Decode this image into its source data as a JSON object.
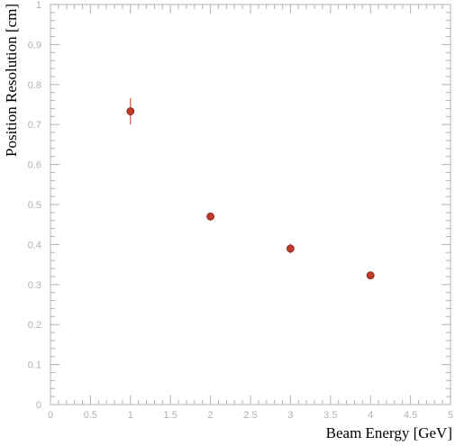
{
  "chart_data": {
    "type": "scatter",
    "xlabel": "Beam Energy [GeV]",
    "ylabel": "Position Resolution [cm]",
    "xlim": [
      0,
      5
    ],
    "ylim": [
      0,
      1
    ],
    "x_ticks": [
      "0",
      "0.5",
      "1",
      "1.5",
      "2",
      "2.5",
      "3",
      "3.5",
      "4",
      "4.5",
      "5"
    ],
    "y_ticks": [
      "0",
      "0.1",
      "0.2",
      "0.3",
      "0.4",
      "0.5",
      "0.6",
      "0.7",
      "0.8",
      "0.9",
      "1"
    ],
    "grid": false,
    "series": [
      {
        "x": [
          1,
          2,
          3,
          4
        ],
        "y": [
          0.733,
          0.47,
          0.39,
          0.323
        ],
        "yerr": [
          0.033,
          0.008,
          0.012,
          0.006
        ]
      }
    ],
    "colors": {
      "marker": "#c0392b",
      "marker_stroke": "#7b2216",
      "error_bar": "#c0392b",
      "axis": "#b0b0b0",
      "tick_label": "#b0b0b0",
      "axis_title": "#000000"
    }
  }
}
